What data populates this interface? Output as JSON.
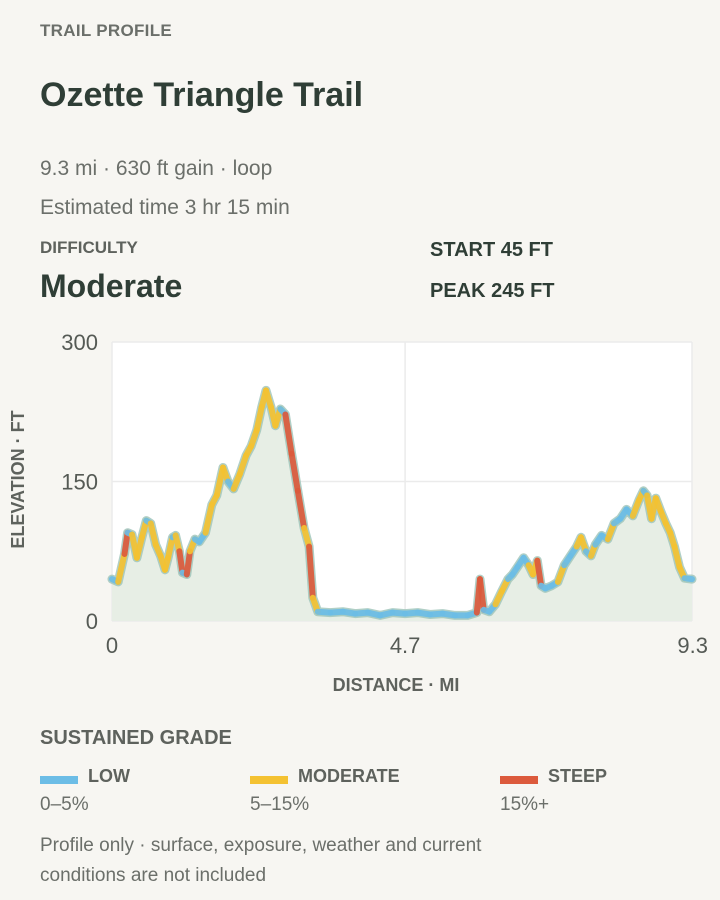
{
  "header": {
    "eyebrow": "TRAIL PROFILE",
    "title": "Ozette Triangle Trail",
    "summary": "9.3 mi · 630 ft gain · loop",
    "estimated_time": "Estimated time 3 hr 15 min"
  },
  "difficulty": {
    "label": "DIFFICULTY",
    "value": "Moderate"
  },
  "stats": {
    "start_label": "START",
    "start_value": "45 FT",
    "peak_label": "PEAK",
    "peak_value": "245 FT"
  },
  "legend": {
    "title": "SUSTAINED GRADE",
    "items": [
      {
        "name": "LOW",
        "range": "0–5%",
        "color": "#6cbde6"
      },
      {
        "name": "MODERATE",
        "range": "5–15%",
        "color": "#f4c232"
      },
      {
        "name": "STEEP",
        "range": "15%+",
        "color": "#dc5a3c"
      }
    ]
  },
  "footnote": "Profile only · surface, exposure, weather and current conditions are not included",
  "colors": {
    "area_fill": "#e7eee5",
    "plot_bg": "#ffffff",
    "grid": "#ebebeb",
    "text_dark": "#2f3e36",
    "text_muted": "#6b6f6a"
  },
  "chart_data": {
    "type": "line",
    "xlabel": "DISTANCE · MI",
    "ylabel": "ELEVATION · FT",
    "xlim": [
      0,
      9.3
    ],
    "ylim": [
      0,
      300
    ],
    "x_ticks": [
      0,
      4.7,
      9.3
    ],
    "x_tick_labels": [
      "0",
      "4.7",
      "9.3"
    ],
    "y_ticks": [
      0,
      150,
      300
    ],
    "y_tick_labels": [
      "0",
      "150",
      "300"
    ],
    "grid": true,
    "series": [
      {
        "points": [
          [
            0.0,
            45
          ],
          [
            0.1,
            42
          ],
          [
            0.2,
            72
          ],
          [
            0.25,
            95
          ],
          [
            0.32,
            93
          ],
          [
            0.4,
            68
          ],
          [
            0.48,
            90
          ],
          [
            0.55,
            108
          ],
          [
            0.62,
            105
          ],
          [
            0.7,
            82
          ],
          [
            0.78,
            70
          ],
          [
            0.85,
            55
          ],
          [
            0.9,
            68
          ],
          [
            0.97,
            90
          ],
          [
            1.02,
            92
          ],
          [
            1.08,
            75
          ],
          [
            1.13,
            52
          ],
          [
            1.2,
            50
          ],
          [
            1.25,
            75
          ],
          [
            1.33,
            88
          ],
          [
            1.4,
            85
          ],
          [
            1.5,
            95
          ],
          [
            1.6,
            125
          ],
          [
            1.68,
            135
          ],
          [
            1.78,
            165
          ],
          [
            1.86,
            150
          ],
          [
            1.95,
            142
          ],
          [
            2.05,
            158
          ],
          [
            2.15,
            178
          ],
          [
            2.23,
            188
          ],
          [
            2.32,
            205
          ],
          [
            2.4,
            230
          ],
          [
            2.47,
            248
          ],
          [
            2.55,
            230
          ],
          [
            2.62,
            210
          ],
          [
            2.7,
            228
          ],
          [
            2.78,
            222
          ],
          [
            2.88,
            180
          ],
          [
            2.98,
            140
          ],
          [
            3.08,
            100
          ],
          [
            3.16,
            80
          ],
          [
            3.22,
            25
          ],
          [
            3.3,
            10
          ],
          [
            3.5,
            9
          ],
          [
            3.7,
            10
          ],
          [
            3.9,
            8
          ],
          [
            4.1,
            9
          ],
          [
            4.3,
            6
          ],
          [
            4.5,
            9
          ],
          [
            4.7,
            8
          ],
          [
            4.9,
            9
          ],
          [
            5.1,
            7
          ],
          [
            5.3,
            8
          ],
          [
            5.5,
            6
          ],
          [
            5.7,
            6
          ],
          [
            5.85,
            9
          ],
          [
            5.9,
            45
          ],
          [
            5.96,
            12
          ],
          [
            6.05,
            10
          ],
          [
            6.15,
            18
          ],
          [
            6.25,
            32
          ],
          [
            6.35,
            45
          ],
          [
            6.42,
            50
          ],
          [
            6.5,
            58
          ],
          [
            6.6,
            68
          ],
          [
            6.68,
            60
          ],
          [
            6.75,
            50
          ],
          [
            6.82,
            65
          ],
          [
            6.88,
            38
          ],
          [
            6.95,
            35
          ],
          [
            7.05,
            38
          ],
          [
            7.15,
            42
          ],
          [
            7.25,
            60
          ],
          [
            7.35,
            70
          ],
          [
            7.45,
            80
          ],
          [
            7.52,
            90
          ],
          [
            7.6,
            75
          ],
          [
            7.68,
            70
          ],
          [
            7.75,
            82
          ],
          [
            7.85,
            92
          ],
          [
            7.95,
            88
          ],
          [
            8.05,
            105
          ],
          [
            8.15,
            110
          ],
          [
            8.25,
            120
          ],
          [
            8.35,
            113
          ],
          [
            8.45,
            130
          ],
          [
            8.52,
            140
          ],
          [
            8.58,
            135
          ],
          [
            8.65,
            110
          ],
          [
            8.72,
            132
          ],
          [
            8.8,
            118
          ],
          [
            8.88,
            105
          ],
          [
            8.95,
            95
          ],
          [
            9.02,
            80
          ],
          [
            9.1,
            58
          ],
          [
            9.18,
            46
          ],
          [
            9.3,
            45
          ]
        ]
      }
    ]
  }
}
